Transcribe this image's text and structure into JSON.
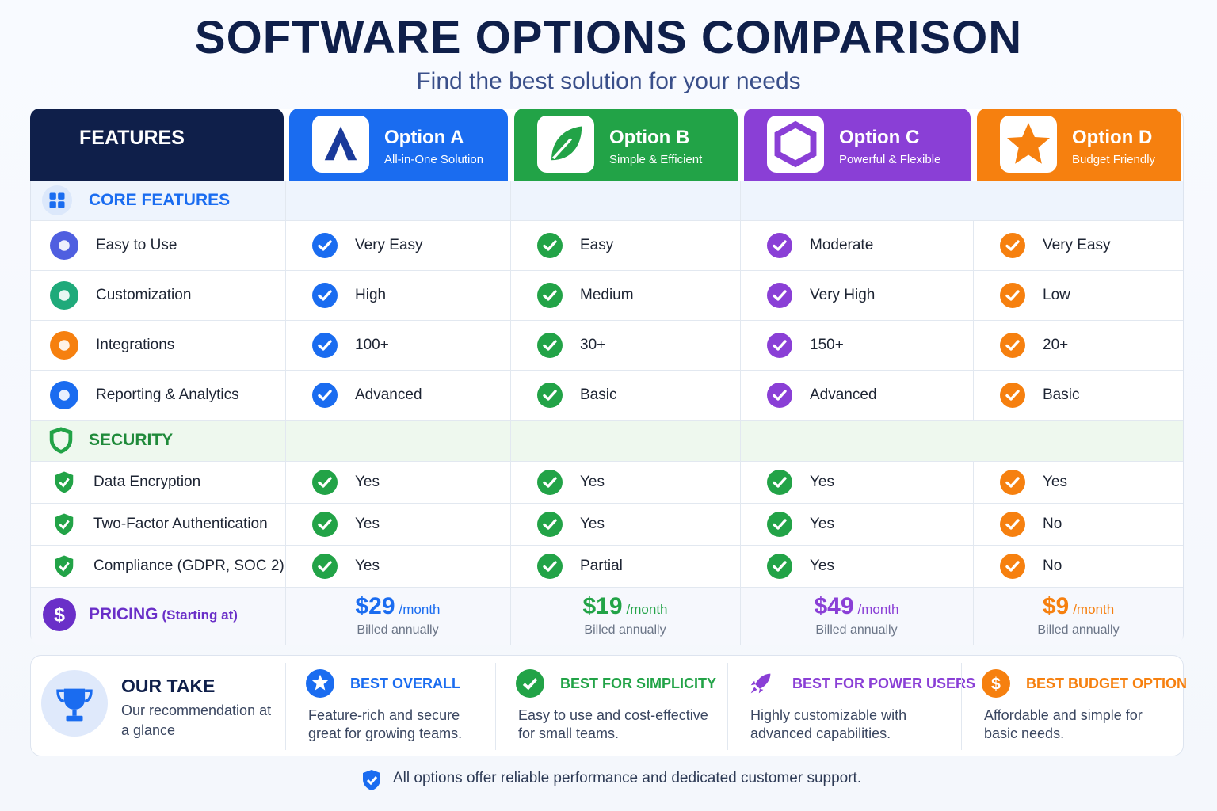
{
  "header": {
    "title": "SOFTWARE OPTIONS COMPARISON",
    "subtitle": "Find the best solution for your needs"
  },
  "table": {
    "features_header": "FEATURES",
    "options": [
      {
        "name": "Option A",
        "tagline": "All-in-One Solution",
        "color": "#1a6cf0"
      },
      {
        "name": "Option B",
        "tagline": "Simple & Efficient",
        "color": "#22a347"
      },
      {
        "name": "Option C",
        "tagline": "Powerful & Flexible",
        "color": "#8a3fd6"
      },
      {
        "name": "Option D",
        "tagline": "Budget Friendly",
        "color": "#f6800f"
      }
    ],
    "sections": [
      {
        "title": "CORE FEATURES",
        "color": "#1a6cf0",
        "background": "#eef4fd",
        "check_colors": [
          "#1a6cf0",
          "#22a347",
          "#8a3fd6",
          "#f6800f"
        ],
        "rows": [
          {
            "label": "Easy to Use",
            "icon_color": "#4f5fe0",
            "values": [
              "Very Easy",
              "Easy",
              "Moderate",
              "Very Easy"
            ]
          },
          {
            "label": "Customization",
            "icon_color": "#1faa7a",
            "values": [
              "High",
              "Medium",
              "Very High",
              "Low"
            ]
          },
          {
            "label": "Integrations",
            "icon_color": "#f6800f",
            "values": [
              "100+",
              "30+",
              "150+",
              "20+"
            ]
          },
          {
            "label": "Reporting & Analytics",
            "icon_color": "#1a6cf0",
            "values": [
              "Advanced",
              "Basic",
              "Advanced",
              "Basic"
            ]
          }
        ]
      },
      {
        "title": "SECURITY",
        "color": "#1f8a3a",
        "background": "#eef8ee",
        "check_colors": [
          "#22a347",
          "#22a347",
          "#22a347",
          "#f6800f"
        ],
        "rows": [
          {
            "label": "Data Encryption",
            "icon_color": "#22a347",
            "values": [
              "Yes",
              "Yes",
              "Yes",
              "Yes"
            ]
          },
          {
            "label": "Two-Factor Authentication",
            "icon_color": "#22a347",
            "values": [
              "Yes",
              "Yes",
              "Yes",
              "No"
            ]
          },
          {
            "label": "Compliance (GDPR, SOC 2)",
            "icon_color": "#22a347",
            "values": [
              "Yes",
              "Partial",
              "Yes",
              "No"
            ]
          }
        ]
      }
    ],
    "pricing": {
      "title": "PRICING",
      "note": "(Starting at)",
      "color": "#6a2fc8",
      "prices": [
        {
          "amount": "$29",
          "unit": "/month",
          "billing": "Billed annually"
        },
        {
          "amount": "$19",
          "unit": "/month",
          "billing": "Billed annually"
        },
        {
          "amount": "$49",
          "unit": "/month",
          "billing": "Billed annually"
        },
        {
          "amount": "$9",
          "unit": "/month",
          "billing": "Billed annually"
        }
      ]
    }
  },
  "take": {
    "title": "OUR TAKE",
    "subtitle": "Our recommendation at a glance",
    "items": [
      {
        "label": "BEST OVERALL",
        "text": "Feature-rich and secure great for growing teams."
      },
      {
        "label": "BEST FOR SIMPLICITY",
        "text": "Easy to use and cost-effective for small teams."
      },
      {
        "label": "BEST FOR POWER USERS",
        "text": "Highly customizable with advanced capabilities."
      },
      {
        "label": "BEST BUDGET OPTION",
        "text": "Affordable and simple for basic needs."
      }
    ]
  },
  "footer": "All options offer reliable performance and dedicated customer support."
}
